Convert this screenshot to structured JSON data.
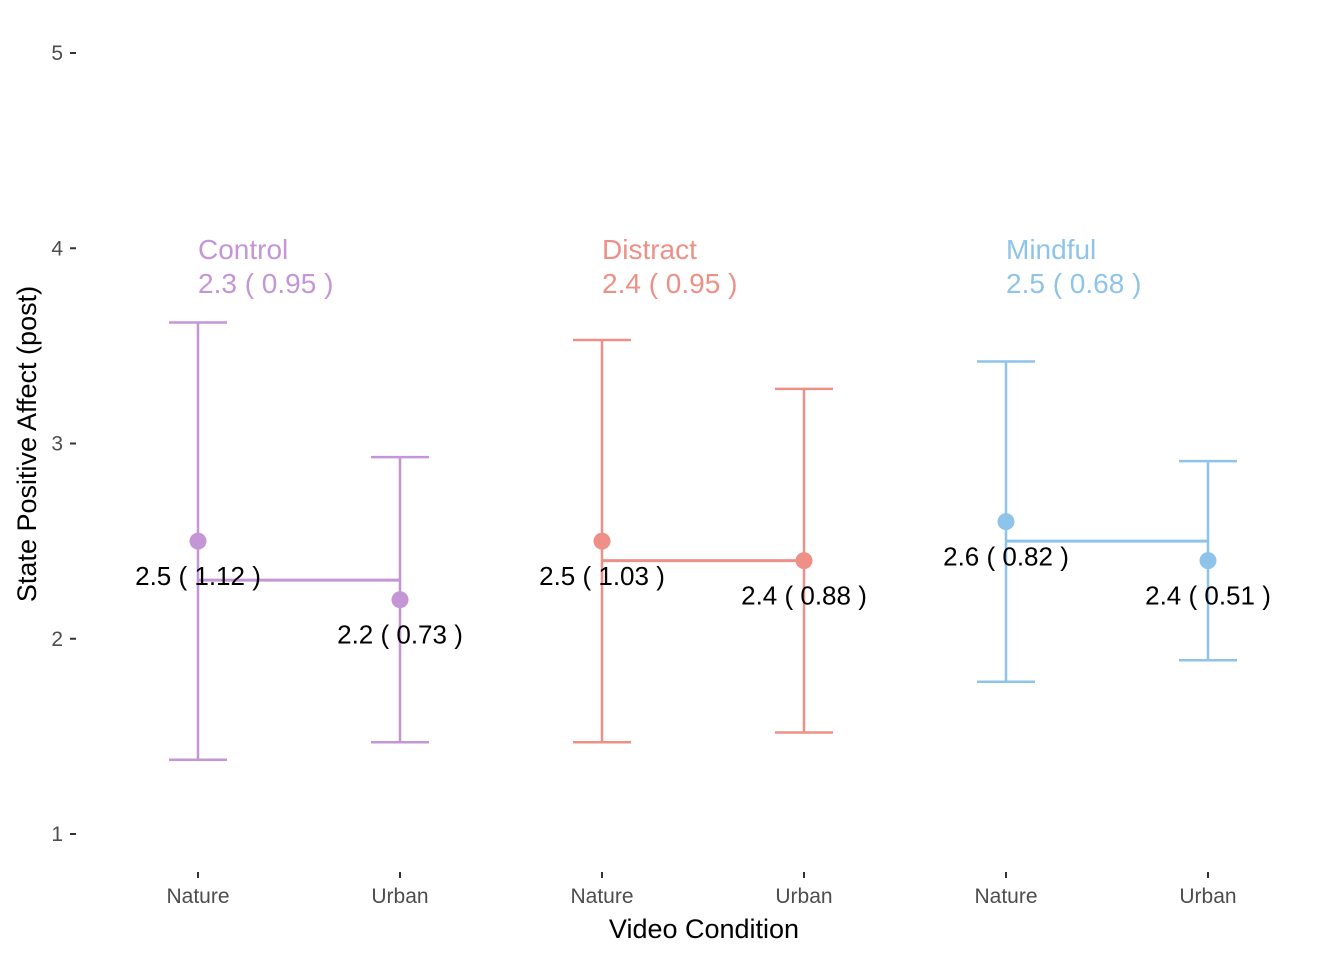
{
  "chart_data": {
    "type": "errorbar",
    "ylabel": "State Positive Affect (post)",
    "xlabel": "Video Condition",
    "ylim": [
      0.9,
      5.1
    ],
    "yticks": [
      "1",
      "2",
      "3",
      "4",
      "5"
    ],
    "grid": false,
    "groups": [
      {
        "name": "Control",
        "color": "#C496D6",
        "summary": "2.3  ( 0.95 )",
        "overall_mean": 2.3,
        "points": [
          {
            "category": "Nature",
            "mean": 2.5,
            "lower": 1.38,
            "upper": 3.62,
            "label": "2.5  ( 1.12 )"
          },
          {
            "category": "Urban",
            "mean": 2.2,
            "lower": 1.47,
            "upper": 2.93,
            "label": "2.2  ( 0.73 )"
          }
        ]
      },
      {
        "name": "Distract",
        "color": "#EE9088",
        "summary": "2.4  ( 0.95 )",
        "overall_mean": 2.4,
        "points": [
          {
            "category": "Nature",
            "mean": 2.5,
            "lower": 1.47,
            "upper": 3.53,
            "label": "2.5  ( 1.03 )"
          },
          {
            "category": "Urban",
            "mean": 2.4,
            "lower": 1.52,
            "upper": 3.28,
            "label": "2.4  ( 0.88 )"
          }
        ]
      },
      {
        "name": "Mindful",
        "color": "#8EC4EA",
        "summary": "2.5  ( 0.68 )",
        "overall_mean": 2.5,
        "points": [
          {
            "category": "Nature",
            "mean": 2.6,
            "lower": 1.78,
            "upper": 3.42,
            "label": "2.6  ( 0.82 )"
          },
          {
            "category": "Urban",
            "mean": 2.4,
            "lower": 1.89,
            "upper": 2.91,
            "label": "2.4  ( 0.51 )"
          }
        ]
      }
    ]
  }
}
